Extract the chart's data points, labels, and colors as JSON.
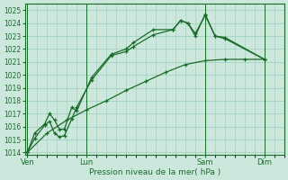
{
  "xlabel": "Pression niveau de la mer( hPa )",
  "bg_color": "#cce8dc",
  "grid_color": "#99ccbb",
  "line_color": "#1a6b2a",
  "yticks": [
    1014,
    1015,
    1016,
    1017,
    1018,
    1019,
    1020,
    1021,
    1022,
    1023,
    1024,
    1025
  ],
  "xtick_pos": [
    0,
    24,
    72,
    96
  ],
  "xtick_labels": [
    "Ven",
    "Lun",
    "Sam",
    "Dim"
  ],
  "xlim": [
    -1,
    104
  ],
  "ylim": [
    1013.8,
    1025.5
  ],
  "xs1": [
    0,
    3,
    7,
    9,
    11,
    13,
    15,
    18,
    20,
    26,
    34,
    40,
    43,
    51,
    59,
    62,
    65,
    68,
    72,
    76,
    80,
    96
  ],
  "ys1": [
    1014.0,
    1015.1,
    1016.1,
    1016.4,
    1015.5,
    1015.2,
    1015.3,
    1016.6,
    1017.5,
    1019.6,
    1021.5,
    1021.8,
    1022.2,
    1023.1,
    1023.5,
    1024.2,
    1024.0,
    1023.0,
    1024.7,
    1023.0,
    1022.8,
    1021.2
  ],
  "xs2": [
    0,
    3,
    7,
    9,
    11,
    13,
    15,
    18,
    20,
    26,
    34,
    40,
    43,
    51,
    59,
    62,
    65,
    68,
    72,
    76,
    80,
    96
  ],
  "ys2": [
    1014.0,
    1015.5,
    1016.2,
    1017.0,
    1016.5,
    1015.8,
    1015.8,
    1017.5,
    1017.2,
    1019.8,
    1021.6,
    1022.0,
    1022.5,
    1023.5,
    1023.5,
    1024.2,
    1024.0,
    1023.2,
    1024.6,
    1023.0,
    1022.9,
    1021.2
  ],
  "xs3": [
    0,
    8,
    16,
    24,
    32,
    40,
    48,
    56,
    64,
    72,
    80,
    88,
    96
  ],
  "ys3": [
    1014.0,
    1015.5,
    1016.5,
    1017.3,
    1018.0,
    1018.8,
    1019.5,
    1020.2,
    1020.8,
    1021.1,
    1021.2,
    1021.2,
    1021.2
  ]
}
